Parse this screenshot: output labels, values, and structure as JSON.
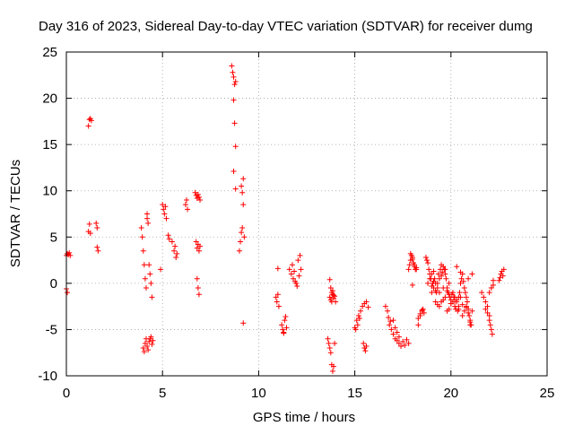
{
  "chart_data": {
    "type": "scatter",
    "title": "Day 316 of 2023, Sidereal Day-to-day VTEC variation (SDTVAR) for receiver dumg",
    "xlabel": "GPS time / hours",
    "ylabel": "SDTVAR / TECUs",
    "xlim": [
      0,
      25
    ],
    "ylim": [
      -10,
      25
    ],
    "xticks": [
      0,
      5,
      10,
      15,
      20,
      25
    ],
    "yticks": [
      -10,
      -5,
      0,
      5,
      10,
      15,
      20,
      25
    ],
    "xtick_labels": [
      "0",
      "5",
      "10",
      "15",
      "20",
      "25"
    ],
    "ytick_labels": [
      "-10",
      "-5",
      "0",
      "5",
      "10",
      "15",
      "20",
      "25"
    ],
    "grid": true,
    "marker": "+",
    "series": [
      {
        "name": "SDTVAR",
        "color": "#ff0000",
        "x": [
          0.0,
          0.05,
          0.1,
          0.15,
          0.2,
          0.0,
          0.05,
          1.15,
          1.2,
          1.25,
          1.15,
          1.2,
          1.25,
          1.3,
          1.55,
          1.6,
          1.65,
          1.6,
          3.9,
          3.95,
          4.0,
          4.05,
          4.1,
          4.15,
          4.2,
          4.0,
          4.05,
          4.1,
          4.15,
          4.2,
          4.25,
          4.3,
          4.35,
          4.4,
          4.45,
          4.5,
          4.3,
          4.35,
          4.4,
          4.45,
          4.2,
          4.25,
          4.9,
          5.0,
          5.05,
          5.1,
          5.15,
          5.2,
          5.3,
          5.35,
          5.5,
          5.6,
          5.7,
          5.65,
          5.75,
          6.2,
          6.25,
          6.3,
          6.7,
          6.75,
          6.8,
          6.85,
          6.9,
          6.95,
          6.75,
          6.8,
          6.85,
          6.9,
          6.95,
          6.8,
          6.85,
          6.9,
          8.6,
          8.65,
          8.7,
          8.75,
          8.8,
          8.7,
          8.75,
          8.8,
          8.7,
          8.8,
          9.0,
          9.05,
          9.1,
          9.15,
          9.2,
          9.1,
          9.15,
          9.2,
          9.25,
          9.2,
          10.9,
          10.95,
          11.0,
          11.05,
          11.0,
          11.2,
          11.25,
          11.3,
          11.35,
          11.4,
          11.3,
          11.45,
          11.6,
          11.7,
          11.8,
          11.9,
          12.0,
          12.1,
          12.2,
          11.75,
          11.85,
          11.95,
          12.05,
          12.15,
          13.6,
          13.65,
          13.7,
          13.75,
          13.8,
          13.85,
          13.9,
          13.95,
          13.7,
          13.75,
          13.8,
          13.85,
          13.9,
          13.95,
          13.7,
          13.75,
          13.8,
          13.85,
          13.9,
          14.0,
          15.0,
          15.1,
          15.2,
          15.3,
          15.4,
          15.5,
          15.6,
          15.7,
          15.45,
          15.5,
          15.55,
          15.6,
          15.05,
          15.15,
          15.25,
          16.6,
          16.7,
          16.8,
          16.9,
          17.0,
          17.1,
          17.2,
          17.3,
          17.4,
          17.5,
          17.6,
          17.7,
          17.8,
          17.0,
          17.1,
          17.2,
          17.3,
          16.75,
          16.85,
          17.8,
          17.85,
          17.9,
          17.95,
          18.0,
          18.05,
          18.1,
          18.15,
          18.2,
          17.9,
          18.0,
          18.1,
          18.2,
          18.0,
          18.3,
          18.4,
          18.5,
          18.55,
          18.6,
          18.3,
          18.4,
          18.5,
          18.7,
          18.75,
          18.8,
          18.85,
          18.9,
          18.95,
          19.0,
          19.05,
          19.1,
          19.15,
          19.2,
          19.25,
          19.3,
          19.35,
          19.4,
          19.45,
          19.5,
          19.55,
          19.6,
          19.65,
          19.7,
          19.75,
          19.8,
          19.85,
          19.9,
          19.95,
          20.0,
          20.05,
          20.1,
          20.15,
          20.2,
          20.25,
          20.3,
          20.35,
          20.4,
          20.45,
          20.5,
          20.55,
          20.6,
          20.65,
          20.7,
          20.75,
          20.8,
          20.85,
          20.9,
          20.95,
          21.0,
          21.05,
          21.1,
          18.8,
          18.9,
          19.0,
          19.1,
          19.2,
          19.3,
          19.4,
          19.5,
          19.6,
          19.7,
          19.8,
          19.9,
          20.0,
          20.1,
          20.2,
          20.3,
          20.4,
          20.5,
          20.6,
          20.7,
          20.8,
          20.9,
          21.0,
          21.1,
          19.0,
          19.2,
          19.4,
          19.6,
          19.8,
          20.0,
          20.2,
          20.4,
          20.6,
          20.8,
          21.0,
          19.5,
          19.7,
          20.3,
          20.5,
          20.9,
          19.1,
          19.3,
          19.9,
          21.6,
          21.7,
          21.8,
          21.9,
          22.0,
          22.05,
          22.1,
          22.15,
          21.8,
          21.9,
          22.0,
          22.0,
          22.1,
          22.2,
          22.2,
          22.5,
          22.55,
          22.6,
          22.65,
          22.7,
          22.75
        ],
        "y": [
          3.0,
          3.2,
          3.1,
          3.3,
          3.0,
          -0.6,
          -1.0,
          5.6,
          6.4,
          5.4,
          17.0,
          17.7,
          17.8,
          17.6,
          6.5,
          6.0,
          3.5,
          3.9,
          6.0,
          5.0,
          3.5,
          2.0,
          0.5,
          -0.5,
          7.0,
          -7.0,
          -7.4,
          -6.5,
          -6.0,
          -6.8,
          -7.2,
          -6.3,
          -6.0,
          -5.8,
          -6.6,
          -6.2,
          2.0,
          1.0,
          0.0,
          -1.5,
          7.5,
          6.5,
          1.5,
          8.5,
          8.0,
          7.5,
          8.3,
          7.0,
          5.2,
          4.8,
          4.5,
          3.5,
          2.8,
          4.0,
          3.2,
          8.5,
          9.0,
          8.0,
          9.8,
          9.5,
          9.2,
          9.6,
          9.3,
          9.0,
          4.5,
          3.8,
          4.2,
          3.5,
          4.0,
          0.5,
          -0.5,
          -1.2,
          23.5,
          22.8,
          22.3,
          21.5,
          21.8,
          19.8,
          17.3,
          14.8,
          12.1,
          10.2,
          3.5,
          4.5,
          5.5,
          6.0,
          11.3,
          10.5,
          9.8,
          8.5,
          5.0,
          -4.3,
          -1.5,
          -2.0,
          1.6,
          -2.5,
          -1.2,
          -4.5,
          -5.0,
          -5.3,
          -4.0,
          -3.6,
          -5.4,
          -4.8,
          1.5,
          1.0,
          0.5,
          0.2,
          -0.3,
          0.8,
          1.5,
          2.0,
          1.3,
          0.0,
          2.5,
          3.0,
          -6.0,
          -6.5,
          -7.0,
          -7.5,
          -8.8,
          -9.5,
          -9.0,
          -6.5,
          -1.5,
          -1.8,
          -2.0,
          -1.2,
          -1.6,
          -1.4,
          0.4,
          -0.5,
          -1.0,
          -0.8,
          -1.3,
          -2.0,
          -4.8,
          -4.0,
          -3.5,
          -3.0,
          -2.5,
          -2.2,
          -2.0,
          -2.6,
          -6.5,
          -7.0,
          -7.3,
          -6.8,
          -5.0,
          -4.5,
          -3.8,
          -2.5,
          -3.0,
          -4.5,
          -5.0,
          -5.5,
          -6.0,
          -6.2,
          -6.5,
          -6.8,
          -6.3,
          -6.7,
          -6.1,
          -6.5,
          -4.0,
          -4.8,
          -5.3,
          -5.8,
          -3.7,
          -4.1,
          1.5,
          2.0,
          2.5,
          3.0,
          2.8,
          2.2,
          1.8,
          1.5,
          1.7,
          3.2,
          2.6,
          2.0,
          1.5,
          -0.2,
          -4.5,
          -3.5,
          -3.0,
          -2.8,
          -3.2,
          -3.8,
          -3.3,
          -2.9,
          2.8,
          2.5,
          2.2,
          1.5,
          1.0,
          0.5,
          1.0,
          0.0,
          -0.5,
          0.5,
          0.0,
          -1.0,
          -0.5,
          1.0,
          0.5,
          1.5,
          0.8,
          1.2,
          1.8,
          1.5,
          1.0,
          0.5,
          -0.5,
          -1.0,
          0.0,
          -1.5,
          -1.8,
          -1.2,
          -2.0,
          -1.5,
          -2.5,
          -2.8,
          -2.0,
          -3.0,
          -1.5,
          -1.0,
          0.0,
          0.5,
          1.0,
          0.2,
          -0.5,
          -1.0,
          -1.5,
          -2.0,
          -2.8,
          -3.5,
          -4.0,
          -4.5,
          -3.0,
          0.0,
          0.5,
          -0.3,
          0.2,
          -0.8,
          0.0,
          -1.0,
          -2.0,
          -0.5,
          -1.5,
          -0.8,
          -1.2,
          -2.2,
          -1.0,
          -2.0,
          -1.8,
          -2.5,
          -1.5,
          -2.3,
          -3.0,
          -2.6,
          -3.2,
          -4.5,
          1.0,
          -1.0,
          -2.0,
          -2.5,
          -1.8,
          -3.0,
          -2.2,
          -1.5,
          -2.8,
          -3.5,
          -2.5,
          -4.2,
          2.0,
          1.5,
          1.8,
          1.2,
          0.5,
          1.3,
          -2.3,
          -2.8,
          -1.0,
          -1.5,
          -2.0,
          -2.5,
          -3.5,
          -4.5,
          -5.0,
          -5.5,
          -2.8,
          -3.2,
          -4.0,
          -1.0,
          -0.5,
          -0.2,
          0.3,
          0.3,
          0.6,
          1.0,
          1.3,
          0.8,
          1.5
        ]
      }
    ]
  }
}
